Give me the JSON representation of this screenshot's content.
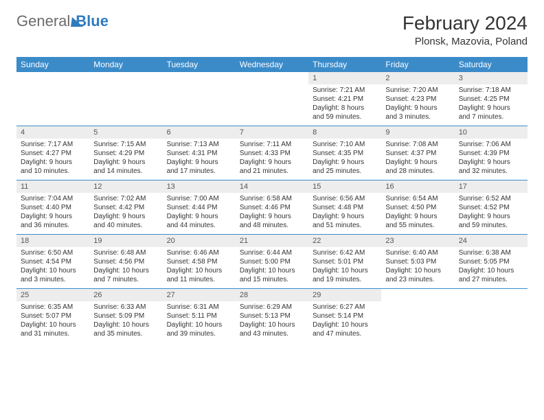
{
  "logo": {
    "part1": "General",
    "part2": "Blue"
  },
  "title": "February 2024",
  "location": "Plonsk, Mazovia, Poland",
  "colors": {
    "header_bg": "#3b8bc9",
    "header_text": "#ffffff",
    "daynum_bg": "#ededed",
    "text": "#333333",
    "rule": "#3b8bc9"
  },
  "weekdays": [
    "Sunday",
    "Monday",
    "Tuesday",
    "Wednesday",
    "Thursday",
    "Friday",
    "Saturday"
  ],
  "weeks": [
    [
      null,
      null,
      null,
      null,
      {
        "n": "1",
        "sr": "7:21 AM",
        "ss": "4:21 PM",
        "dl1": "Daylight: 8 hours",
        "dl2": "and 59 minutes."
      },
      {
        "n": "2",
        "sr": "7:20 AM",
        "ss": "4:23 PM",
        "dl1": "Daylight: 9 hours",
        "dl2": "and 3 minutes."
      },
      {
        "n": "3",
        "sr": "7:18 AM",
        "ss": "4:25 PM",
        "dl1": "Daylight: 9 hours",
        "dl2": "and 7 minutes."
      }
    ],
    [
      {
        "n": "4",
        "sr": "7:17 AM",
        "ss": "4:27 PM",
        "dl1": "Daylight: 9 hours",
        "dl2": "and 10 minutes."
      },
      {
        "n": "5",
        "sr": "7:15 AM",
        "ss": "4:29 PM",
        "dl1": "Daylight: 9 hours",
        "dl2": "and 14 minutes."
      },
      {
        "n": "6",
        "sr": "7:13 AM",
        "ss": "4:31 PM",
        "dl1": "Daylight: 9 hours",
        "dl2": "and 17 minutes."
      },
      {
        "n": "7",
        "sr": "7:11 AM",
        "ss": "4:33 PM",
        "dl1": "Daylight: 9 hours",
        "dl2": "and 21 minutes."
      },
      {
        "n": "8",
        "sr": "7:10 AM",
        "ss": "4:35 PM",
        "dl1": "Daylight: 9 hours",
        "dl2": "and 25 minutes."
      },
      {
        "n": "9",
        "sr": "7:08 AM",
        "ss": "4:37 PM",
        "dl1": "Daylight: 9 hours",
        "dl2": "and 28 minutes."
      },
      {
        "n": "10",
        "sr": "7:06 AM",
        "ss": "4:39 PM",
        "dl1": "Daylight: 9 hours",
        "dl2": "and 32 minutes."
      }
    ],
    [
      {
        "n": "11",
        "sr": "7:04 AM",
        "ss": "4:40 PM",
        "dl1": "Daylight: 9 hours",
        "dl2": "and 36 minutes."
      },
      {
        "n": "12",
        "sr": "7:02 AM",
        "ss": "4:42 PM",
        "dl1": "Daylight: 9 hours",
        "dl2": "and 40 minutes."
      },
      {
        "n": "13",
        "sr": "7:00 AM",
        "ss": "4:44 PM",
        "dl1": "Daylight: 9 hours",
        "dl2": "and 44 minutes."
      },
      {
        "n": "14",
        "sr": "6:58 AM",
        "ss": "4:46 PM",
        "dl1": "Daylight: 9 hours",
        "dl2": "and 48 minutes."
      },
      {
        "n": "15",
        "sr": "6:56 AM",
        "ss": "4:48 PM",
        "dl1": "Daylight: 9 hours",
        "dl2": "and 51 minutes."
      },
      {
        "n": "16",
        "sr": "6:54 AM",
        "ss": "4:50 PM",
        "dl1": "Daylight: 9 hours",
        "dl2": "and 55 minutes."
      },
      {
        "n": "17",
        "sr": "6:52 AM",
        "ss": "4:52 PM",
        "dl1": "Daylight: 9 hours",
        "dl2": "and 59 minutes."
      }
    ],
    [
      {
        "n": "18",
        "sr": "6:50 AM",
        "ss": "4:54 PM",
        "dl1": "Daylight: 10 hours",
        "dl2": "and 3 minutes."
      },
      {
        "n": "19",
        "sr": "6:48 AM",
        "ss": "4:56 PM",
        "dl1": "Daylight: 10 hours",
        "dl2": "and 7 minutes."
      },
      {
        "n": "20",
        "sr": "6:46 AM",
        "ss": "4:58 PM",
        "dl1": "Daylight: 10 hours",
        "dl2": "and 11 minutes."
      },
      {
        "n": "21",
        "sr": "6:44 AM",
        "ss": "5:00 PM",
        "dl1": "Daylight: 10 hours",
        "dl2": "and 15 minutes."
      },
      {
        "n": "22",
        "sr": "6:42 AM",
        "ss": "5:01 PM",
        "dl1": "Daylight: 10 hours",
        "dl2": "and 19 minutes."
      },
      {
        "n": "23",
        "sr": "6:40 AM",
        "ss": "5:03 PM",
        "dl1": "Daylight: 10 hours",
        "dl2": "and 23 minutes."
      },
      {
        "n": "24",
        "sr": "6:38 AM",
        "ss": "5:05 PM",
        "dl1": "Daylight: 10 hours",
        "dl2": "and 27 minutes."
      }
    ],
    [
      {
        "n": "25",
        "sr": "6:35 AM",
        "ss": "5:07 PM",
        "dl1": "Daylight: 10 hours",
        "dl2": "and 31 minutes."
      },
      {
        "n": "26",
        "sr": "6:33 AM",
        "ss": "5:09 PM",
        "dl1": "Daylight: 10 hours",
        "dl2": "and 35 minutes."
      },
      {
        "n": "27",
        "sr": "6:31 AM",
        "ss": "5:11 PM",
        "dl1": "Daylight: 10 hours",
        "dl2": "and 39 minutes."
      },
      {
        "n": "28",
        "sr": "6:29 AM",
        "ss": "5:13 PM",
        "dl1": "Daylight: 10 hours",
        "dl2": "and 43 minutes."
      },
      {
        "n": "29",
        "sr": "6:27 AM",
        "ss": "5:14 PM",
        "dl1": "Daylight: 10 hours",
        "dl2": "and 47 minutes."
      },
      null,
      null
    ]
  ]
}
